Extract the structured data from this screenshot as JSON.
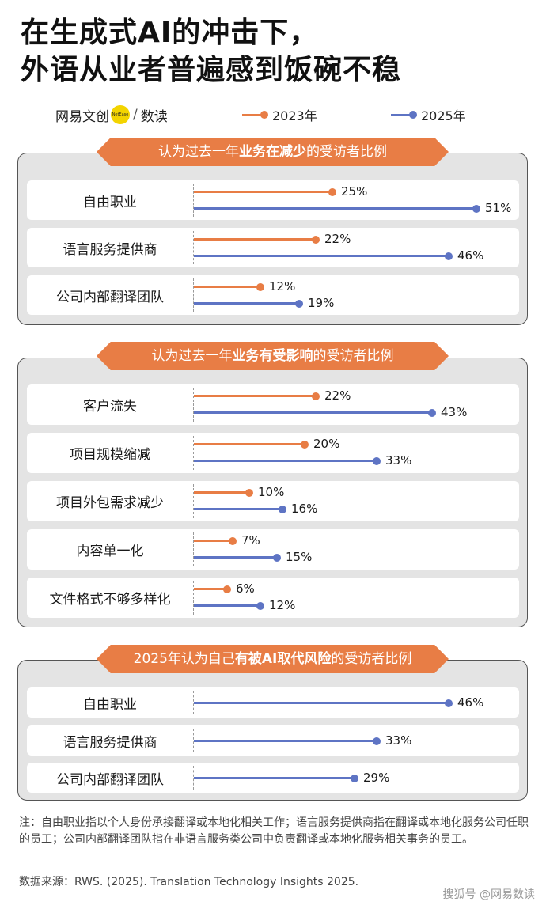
{
  "title": {
    "line1": "在生成式AI的冲击下，",
    "line2": "外语从业者普遍感到饭碗不稳"
  },
  "brand": {
    "left": "网易文创",
    "circle": "NetEase",
    "slash": "/",
    "right": "数读"
  },
  "legend": [
    {
      "label": "2023年",
      "color": "#e87d45"
    },
    {
      "label": "2025年",
      "color": "#5e74c4"
    }
  ],
  "colors": {
    "orange": "#e87d45",
    "blue": "#5e74c4"
  },
  "chart_data": [
    {
      "type": "bar",
      "title_parts": [
        "认为过去一年",
        "业务在减少",
        "的受访者比例"
      ],
      "categories": [
        "自由职业",
        "语言服务提供商",
        "公司内部翻译团队"
      ],
      "series": [
        {
          "name": "2023年",
          "values": [
            25,
            22,
            12
          ]
        },
        {
          "name": "2025年",
          "values": [
            51,
            46,
            19
          ]
        }
      ]
    },
    {
      "type": "bar",
      "title_parts": [
        "认为过去一年",
        "业务有受影响",
        "的受访者比例"
      ],
      "categories": [
        "客户流失",
        "项目规模缩减",
        "项目外包需求减少",
        "内容单一化",
        "文件格式不够多样化"
      ],
      "series": [
        {
          "name": "2023年",
          "values": [
            22,
            20,
            10,
            7,
            6
          ]
        },
        {
          "name": "2025年",
          "values": [
            43,
            33,
            16,
            15,
            12
          ]
        }
      ]
    },
    {
      "type": "bar",
      "title_parts": [
        "2025年认为自己",
        "有被AI取代风险",
        "的受访者比例"
      ],
      "categories": [
        "自由职业",
        "语言服务提供商",
        "公司内部翻译团队"
      ],
      "series": [
        {
          "name": "2025年",
          "values": [
            46,
            33,
            29
          ]
        }
      ]
    }
  ],
  "note": "注：自由职业指以个人身份承接翻译或本地化相关工作；语言服务提供商指在翻译或本地化服务公司任职的员工；公司内部翻译团队指在非语言服务类公司中负责翻译或本地化服务相关事务的员工。",
  "source": "数据来源：RWS. (2025). Translation Technology Insights 2025.",
  "watermark": "搜狐号 @网易数读"
}
